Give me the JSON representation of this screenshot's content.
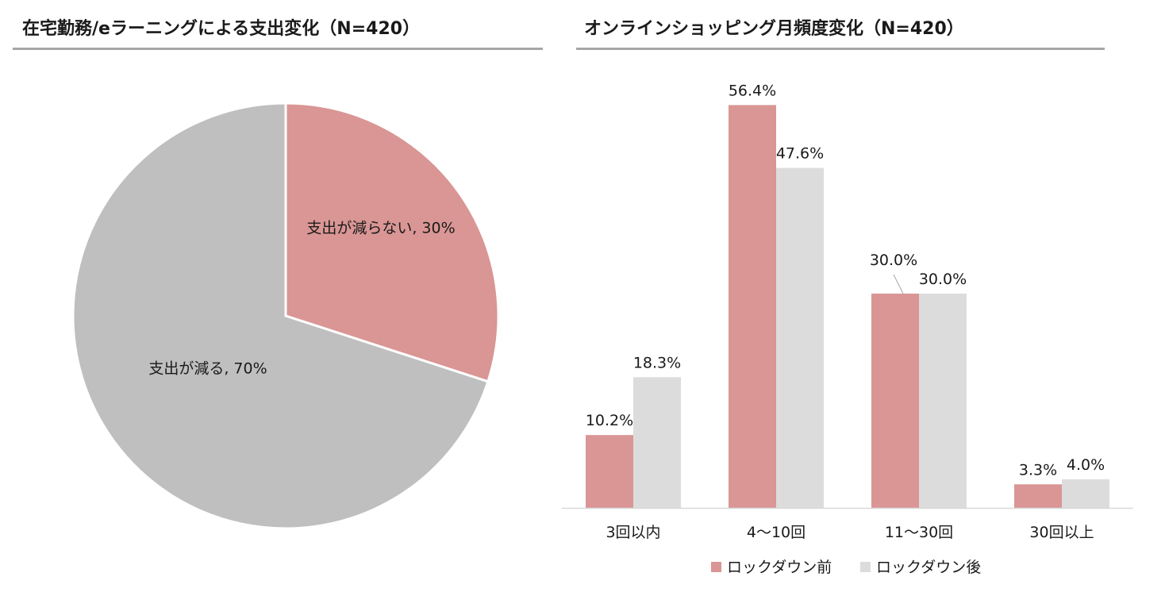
{
  "chart_data": [
    {
      "type": "pie",
      "title": "在宅勤務/eラーニングによる支出変化（N=420）",
      "slices": [
        {
          "label": "支出が減らない",
          "value": 30,
          "color": "#d99694",
          "display": "支出が減らない, 30%"
        },
        {
          "label": "支出が減る",
          "value": 70,
          "color": "#bfbfbf",
          "display": "支出が減る, 70%"
        }
      ]
    },
    {
      "type": "bar",
      "title": "オンラインショッピング月頻度変化（N=420）",
      "categories": [
        "3回以内",
        "4〜10回",
        "11〜30回",
        "30回以上"
      ],
      "series": [
        {
          "name": "ロックダウン前",
          "color": "#d99694",
          "values": [
            10.2,
            56.4,
            30.0,
            3.3
          ],
          "labels": [
            "10.2%",
            "56.4%",
            "30.0%",
            "3.3%"
          ]
        },
        {
          "name": "ロックダウン後",
          "color": "#dcdcdc",
          "values": [
            18.3,
            47.6,
            30.0,
            4.0
          ],
          "labels": [
            "18.3%",
            "47.6%",
            "30.0%",
            "4.0%"
          ]
        }
      ],
      "ylim": [
        0,
        60
      ],
      "grid": false,
      "legend": "bottom"
    }
  ]
}
